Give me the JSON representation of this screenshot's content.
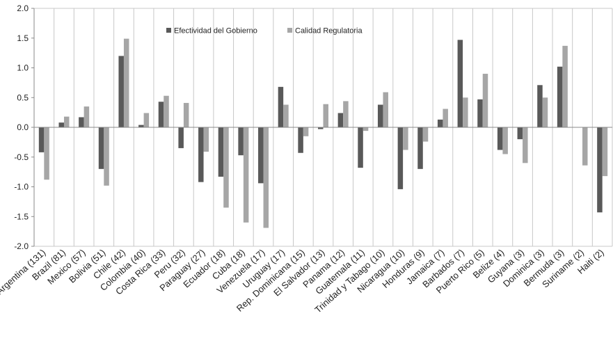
{
  "chart_data": {
    "type": "bar",
    "categories": [
      "Argentina (131)",
      "Brazil (81)",
      "Mexico (57)",
      "Bolivia (51)",
      "Chile (42)",
      "Colombia (40)",
      "Costa Rica (33)",
      "Peru (32)",
      "Paraguay (27)",
      "Ecuador (18)",
      "Cuba (18)",
      "Venezuela (17)",
      "Uruguay (17)",
      "Rep. Dominicana (15)",
      "El Salvador (13)",
      "Panama (12)",
      "Guatemala (11)",
      "Trinidad y Tabago (10)",
      "Nicaragua (10)",
      "Honduras (9)",
      "Jamaica (7)",
      "Barbados (7)",
      "Puerto Rico (5)",
      "Belize (4)",
      "Guyana (3)",
      "Dominica (3)",
      "Bermuda (3)",
      "Suriname (2)",
      "Haiti (2)"
    ],
    "series": [
      {
        "name": "Efectividad del Gobierno",
        "color": "#595959",
        "values": [
          -0.42,
          0.08,
          0.17,
          -0.7,
          1.2,
          0.04,
          0.43,
          -0.35,
          -0.92,
          -0.83,
          -0.47,
          -0.94,
          0.68,
          -0.43,
          -0.03,
          0.24,
          -0.68,
          0.38,
          -1.04,
          -0.7,
          0.13,
          1.47,
          0.47,
          -0.38,
          -0.2,
          0.71,
          1.02,
          0.0,
          -1.43
        ]
      },
      {
        "name": "Calidad Regulatoria",
        "color": "#a6a6a6",
        "values": [
          -0.88,
          0.18,
          0.35,
          -0.98,
          1.49,
          0.24,
          0.53,
          0.41,
          -0.41,
          -1.35,
          -1.6,
          -1.69,
          0.38,
          -0.15,
          0.39,
          0.44,
          -0.06,
          0.59,
          -0.38,
          -0.24,
          0.31,
          0.5,
          0.9,
          -0.45,
          -0.6,
          0.5,
          1.37,
          -0.64,
          -0.82
        ]
      }
    ],
    "yticks": [
      "2.0",
      "1.5",
      "1.0",
      "0.5",
      "0.0",
      "-0.5",
      "-1.0",
      "-1.5",
      "-2.0"
    ],
    "ylim": [
      -2.0,
      2.0
    ],
    "grid": "vertical",
    "legend_position": "top-center"
  }
}
